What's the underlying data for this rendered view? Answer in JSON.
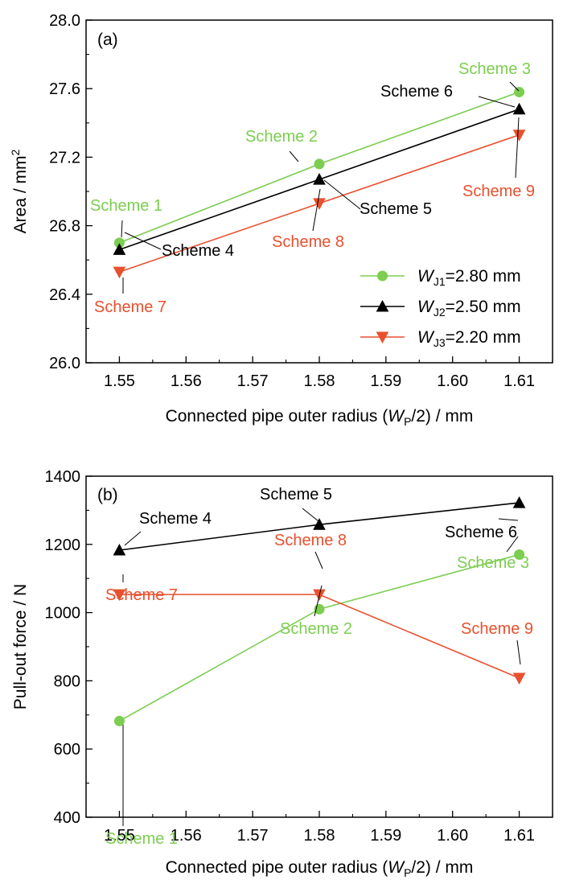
{
  "chart_data": [
    {
      "panel_label": "(a)",
      "type": "line",
      "xlabel": {
        "pre": "Connected pipe outer radius (",
        "italic": "W",
        "sub": "P",
        "post": "/2) / mm"
      },
      "ylabel": {
        "pre": "Area / mm",
        "sup": "2"
      },
      "xlim": [
        1.545,
        1.615
      ],
      "ylim": [
        26.0,
        28.0
      ],
      "xticks": [
        "1.55",
        "1.56",
        "1.57",
        "1.58",
        "1.59",
        "1.60",
        "1.61"
      ],
      "yticks": [
        "26.0",
        "26.4",
        "26.8",
        "27.2",
        "27.6",
        "28.0"
      ],
      "x": [
        1.55,
        1.58,
        1.61
      ],
      "legend_position": "lower-right",
      "series": [
        {
          "name": "W_J1=2.80 mm",
          "legend": {
            "italic": "W",
            "sub": "J1",
            "post": "=2.80 mm"
          },
          "color": "#7ccd50",
          "marker": "circle",
          "values": [
            26.7,
            27.16,
            27.58
          ]
        },
        {
          "name": "W_J2=2.50 mm",
          "legend": {
            "italic": "W",
            "sub": "J2",
            "post": "=2.50 mm"
          },
          "color": "#000000",
          "marker": "triangle-up",
          "values": [
            26.66,
            27.07,
            27.48
          ]
        },
        {
          "name": "W_J3=2.20 mm",
          "legend": {
            "italic": "W",
            "sub": "J3",
            "post": "=2.20 mm"
          },
          "color": "#e8502e",
          "marker": "triangle-down",
          "values": [
            26.53,
            26.93,
            27.33
          ]
        }
      ],
      "annotations": [
        {
          "text": "Scheme 1",
          "series": 0,
          "point": 0
        },
        {
          "text": "Scheme 2",
          "series": 0,
          "point": 1
        },
        {
          "text": "Scheme 3",
          "series": 0,
          "point": 2
        },
        {
          "text": "Scheme 4",
          "series": 1,
          "point": 0
        },
        {
          "text": "Scheme 5",
          "series": 1,
          "point": 1
        },
        {
          "text": "Scheme 6",
          "series": 1,
          "point": 2
        },
        {
          "text": "Scheme 7",
          "series": 2,
          "point": 0
        },
        {
          "text": "Scheme 8",
          "series": 2,
          "point": 1
        },
        {
          "text": "Scheme 9",
          "series": 2,
          "point": 2
        }
      ]
    },
    {
      "panel_label": "(b)",
      "type": "line",
      "xlabel": {
        "pre": "Connected pipe outer radius (",
        "italic": "W",
        "sub": "P",
        "post": "/2) / mm"
      },
      "ylabel": {
        "pre": "Pull-out force / N"
      },
      "xlim": [
        1.545,
        1.615
      ],
      "ylim": [
        400,
        1400
      ],
      "xticks": [
        "1.55",
        "1.56",
        "1.57",
        "1.58",
        "1.59",
        "1.60",
        "1.61"
      ],
      "yticks": [
        "400",
        "600",
        "800",
        "1000",
        "1200",
        "1400"
      ],
      "x": [
        1.55,
        1.58,
        1.61
      ],
      "series": [
        {
          "color": "#7ccd50",
          "marker": "circle",
          "values": [
            682,
            1010,
            1170
          ]
        },
        {
          "color": "#000000",
          "marker": "triangle-up",
          "values": [
            1183,
            1258,
            1322
          ]
        },
        {
          "color": "#e8502e",
          "marker": "triangle-down",
          "values": [
            1053,
            1053,
            808
          ]
        }
      ],
      "annotations": [
        {
          "text": "Scheme 1",
          "series": 0,
          "point": 0
        },
        {
          "text": "Scheme 2",
          "series": 0,
          "point": 1
        },
        {
          "text": "Scheme 3",
          "series": 0,
          "point": 2
        },
        {
          "text": "Scheme 4",
          "series": 1,
          "point": 0
        },
        {
          "text": "Scheme 5",
          "series": 1,
          "point": 1
        },
        {
          "text": "Scheme 6",
          "series": 1,
          "point": 2
        },
        {
          "text": "Scheme 7",
          "series": 2,
          "point": 0
        },
        {
          "text": "Scheme 8",
          "series": 2,
          "point": 1
        },
        {
          "text": "Scheme 9",
          "series": 2,
          "point": 2
        }
      ]
    }
  ]
}
